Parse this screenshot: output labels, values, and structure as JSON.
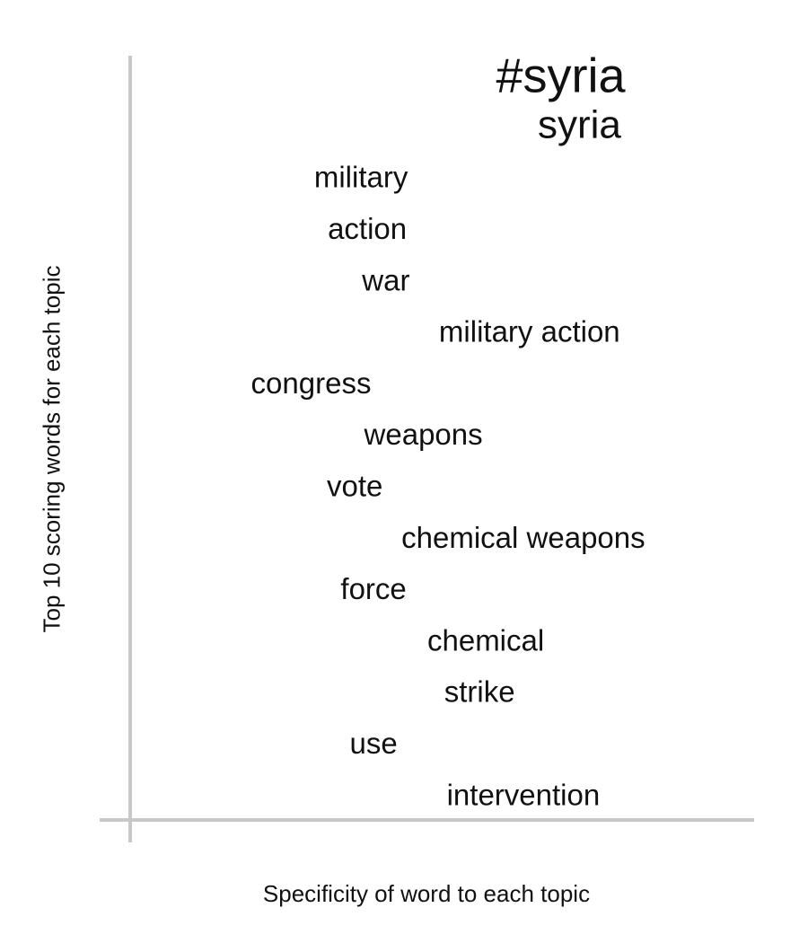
{
  "chart_data": {
    "type": "scatter",
    "title": "",
    "xlabel": "Specificity of word to each topic",
    "ylabel": "Top 10 scoring words for each topic",
    "grid": false,
    "legend": "none",
    "points": [
      {
        "word": "#syria",
        "specificity": 0.69,
        "rank": 1,
        "emphasis": "large"
      },
      {
        "word": "syria",
        "specificity": 0.72,
        "rank": 2,
        "emphasis": "medium"
      },
      {
        "word": "military",
        "specificity": 0.37,
        "rank": 3
      },
      {
        "word": "action",
        "specificity": 0.38,
        "rank": 4
      },
      {
        "word": "war",
        "specificity": 0.41,
        "rank": 5
      },
      {
        "word": "military action",
        "specificity": 0.64,
        "rank": 6
      },
      {
        "word": "congress",
        "specificity": 0.29,
        "rank": 7
      },
      {
        "word": "weapons",
        "specificity": 0.47,
        "rank": 8
      },
      {
        "word": "vote",
        "specificity": 0.36,
        "rank": 9
      },
      {
        "word": "chemical weapons",
        "specificity": 0.63,
        "rank": 10
      },
      {
        "word": "force",
        "specificity": 0.39,
        "rank": 11
      },
      {
        "word": "chemical",
        "specificity": 0.57,
        "rank": 12
      },
      {
        "word": "strike",
        "specificity": 0.56,
        "rank": 13
      },
      {
        "word": "use",
        "specificity": 0.39,
        "rank": 14
      },
      {
        "word": "intervention",
        "specificity": 0.63,
        "rank": 15
      }
    ],
    "colors": {
      "axis": "#c8c8c8",
      "text": "#111111"
    }
  }
}
